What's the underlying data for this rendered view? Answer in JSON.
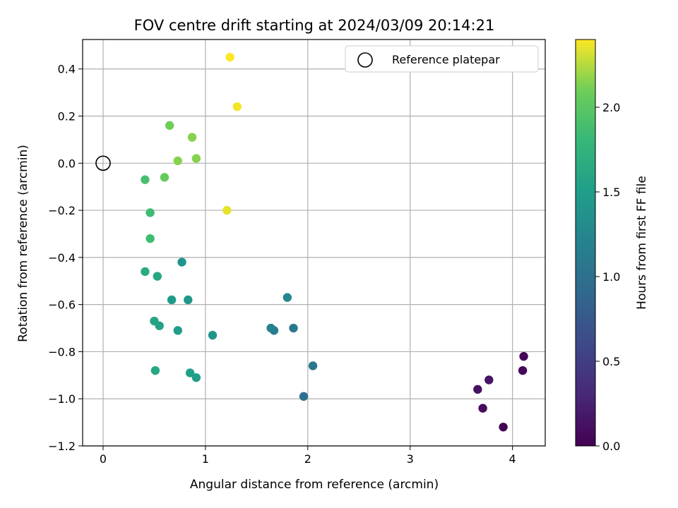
{
  "chart_data": {
    "type": "scatter",
    "title": "FOV centre drift starting at 2024/03/09 20:14:21",
    "xlabel": "Angular distance from reference (arcmin)",
    "ylabel": "Rotation from reference (arcmin)",
    "xlim": [
      -0.2,
      4.32
    ],
    "ylim": [
      -1.2,
      0.525
    ],
    "xticks": [
      0,
      1,
      2,
      3,
      4
    ],
    "xtick_labels": [
      "0",
      "1",
      "2",
      "3",
      "4"
    ],
    "yticks": [
      0.4,
      0.2,
      0.0,
      -0.2,
      -0.4,
      -0.6,
      -0.8,
      -1.0,
      -1.2
    ],
    "ytick_labels": [
      "0.4",
      "0.2",
      "0.0",
      "−0.2",
      "−0.4",
      "−0.6",
      "−0.8",
      "−1.0",
      "−1.2"
    ],
    "grid": true,
    "legend": {
      "position": "top-right",
      "entries": [
        "Reference platepar"
      ]
    },
    "reference_point": {
      "x": 0.0,
      "y": 0.0
    },
    "colorbar": {
      "label": "Hours from first FF file",
      "range": [
        0.0,
        2.4
      ],
      "ticks": [
        0.0,
        0.5,
        1.0,
        1.5,
        2.0
      ],
      "tick_labels": [
        "0.0",
        "0.5",
        "1.0",
        "1.5",
        "2.0"
      ],
      "colormap": "viridis"
    },
    "points": [
      {
        "x": 3.91,
        "y": -1.12,
        "h": 0.0
      },
      {
        "x": 4.11,
        "y": -0.82,
        "h": 0.03
      },
      {
        "x": 4.1,
        "y": -0.88,
        "h": 0.05
      },
      {
        "x": 3.71,
        "y": -1.04,
        "h": 0.08
      },
      {
        "x": 3.66,
        "y": -0.96,
        "h": 0.12
      },
      {
        "x": 3.77,
        "y": -0.92,
        "h": 0.15
      },
      {
        "x": 1.96,
        "y": -0.99,
        "h": 1.0
      },
      {
        "x": 2.05,
        "y": -0.86,
        "h": 1.05
      },
      {
        "x": 1.86,
        "y": -0.7,
        "h": 1.08
      },
      {
        "x": 1.67,
        "y": -0.71,
        "h": 1.15
      },
      {
        "x": 1.64,
        "y": -0.7,
        "h": 1.2
      },
      {
        "x": 1.8,
        "y": -0.57,
        "h": 1.25
      },
      {
        "x": 1.07,
        "y": -0.73,
        "h": 1.4
      },
      {
        "x": 0.77,
        "y": -0.42,
        "h": 1.4
      },
      {
        "x": 0.83,
        "y": -0.58,
        "h": 1.43
      },
      {
        "x": 0.67,
        "y": -0.58,
        "h": 1.47
      },
      {
        "x": 0.73,
        "y": -0.71,
        "h": 1.5
      },
      {
        "x": 0.91,
        "y": -0.91,
        "h": 1.5
      },
      {
        "x": 0.85,
        "y": -0.89,
        "h": 1.52
      },
      {
        "x": 0.55,
        "y": -0.69,
        "h": 1.55
      },
      {
        "x": 0.5,
        "y": -0.67,
        "h": 1.57
      },
      {
        "x": 0.51,
        "y": -0.88,
        "h": 1.6
      },
      {
        "x": 0.53,
        "y": -0.48,
        "h": 1.6
      },
      {
        "x": 0.41,
        "y": -0.46,
        "h": 1.65
      },
      {
        "x": 0.46,
        "y": -0.32,
        "h": 1.85
      },
      {
        "x": 0.46,
        "y": -0.21,
        "h": 1.85
      },
      {
        "x": 0.41,
        "y": -0.07,
        "h": 1.9
      },
      {
        "x": 0.6,
        "y": -0.06,
        "h": 2.05
      },
      {
        "x": 0.65,
        "y": 0.16,
        "h": 2.1
      },
      {
        "x": 0.73,
        "y": 0.01,
        "h": 2.15
      },
      {
        "x": 0.87,
        "y": 0.11,
        "h": 2.15
      },
      {
        "x": 0.91,
        "y": 0.02,
        "h": 2.15
      },
      {
        "x": 1.21,
        "y": -0.2,
        "h": 2.35
      },
      {
        "x": 1.31,
        "y": 0.24,
        "h": 2.38
      },
      {
        "x": 1.24,
        "y": 0.45,
        "h": 2.4
      }
    ]
  }
}
